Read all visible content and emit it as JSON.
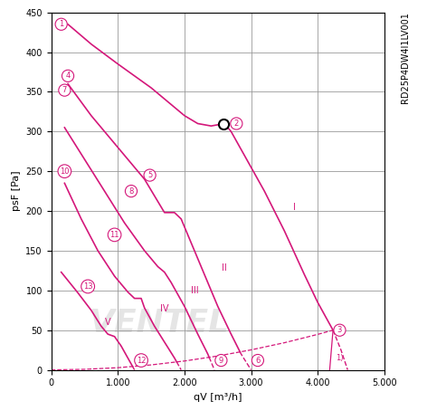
{
  "chart_data": {
    "type": "line",
    "model": "RD25P4DW4I1LV001",
    "watermark": "VENTEL",
    "xlabel": "qV [m³/h]",
    "ylabel": "psF [Pa]",
    "xlim": [
      0,
      5000
    ],
    "xticks": [
      0,
      {
        "value": 1000,
        "label": "1.000"
      },
      {
        "value": 2000,
        "label": "2.000"
      },
      {
        "value": 3000,
        "label": "3.000"
      },
      {
        "value": 4000,
        "label": "4.000"
      },
      {
        "value": 5000,
        "label": "5.000"
      }
    ],
    "ylim": [
      0,
      450
    ],
    "yticks": [
      0,
      50,
      100,
      150,
      200,
      250,
      300,
      350,
      400,
      450
    ],
    "grid": true,
    "color": "#d4177a",
    "series": [
      {
        "name": "I",
        "x": [
          250,
          600,
          1000,
          1500,
          2000,
          2200,
          2400,
          2600,
          2700,
          2900,
          3200,
          3500,
          3800,
          4000,
          4230,
          4350,
          4450
        ],
        "values": [
          435,
          410,
          385,
          355,
          320,
          310,
          307,
          310,
          300,
          270,
          225,
          175,
          120,
          85,
          50,
          25,
          0
        ],
        "label_x": 3650,
        "label_y": 205
      },
      {
        "name": "II",
        "x": [
          250,
          600,
          1000,
          1400,
          1600,
          1700,
          1850,
          1950,
          2100,
          2300,
          2500,
          2700,
          2850,
          3000
        ],
        "values": [
          360,
          320,
          280,
          240,
          212,
          198,
          198,
          190,
          160,
          120,
          80,
          45,
          20,
          0
        ],
        "label_x": 2600,
        "label_y": 128
      },
      {
        "name": "III",
        "x": [
          200,
          500,
          800,
          1100,
          1400,
          1600,
          1700,
          1800,
          2000,
          2200,
          2350,
          2450
        ],
        "values": [
          305,
          265,
          225,
          185,
          150,
          130,
          123,
          110,
          80,
          45,
          20,
          0
        ],
        "label_x": 2150,
        "label_y": 100
      },
      {
        "name": "IV",
        "x": [
          200,
          450,
          700,
          950,
          1150,
          1250,
          1350,
          1400,
          1550,
          1700,
          1850,
          1950
        ],
        "values": [
          235,
          190,
          150,
          118,
          98,
          90,
          90,
          78,
          55,
          35,
          15,
          0
        ],
        "label_x": 1700,
        "label_y": 77
      },
      {
        "name": "V",
        "x": [
          150,
          400,
          600,
          750,
          850,
          950,
          1050,
          1150,
          1250
        ],
        "values": [
          123,
          97,
          75,
          55,
          45,
          42,
          30,
          15,
          0
        ],
        "label_x": 850,
        "label_y": 60
      }
    ],
    "system_curve": {
      "x": [
        0,
        500,
        1000,
        1500,
        2000,
        2500,
        3000,
        3500,
        4000,
        4230
      ],
      "values": [
        0,
        0.7,
        2.8,
        6.3,
        11.2,
        17.5,
        25.2,
        34.2,
        44.7,
        50
      ]
    },
    "marked_point": {
      "x": 2590,
      "y": 310
    },
    "circled_labels": [
      {
        "text": "1",
        "x": 150,
        "y": 435
      },
      {
        "text": "2",
        "x": 2780,
        "y": 310
      },
      {
        "text": "3",
        "x": 4330,
        "y": 50
      },
      {
        "text": "4",
        "x": 250,
        "y": 370
      },
      {
        "text": "5",
        "x": 1480,
        "y": 245
      },
      {
        "text": "6",
        "x": 3100,
        "y": 12
      },
      {
        "text": "7",
        "x": 200,
        "y": 352
      },
      {
        "text": "8",
        "x": 1200,
        "y": 225
      },
      {
        "text": "9",
        "x": 2550,
        "y": 12
      },
      {
        "text": "10",
        "x": 200,
        "y": 250
      },
      {
        "text": "11",
        "x": 950,
        "y": 170
      },
      {
        "text": "12",
        "x": 1350,
        "y": 12
      },
      {
        "text": "13",
        "x": 550,
        "y": 105
      }
    ],
    "note": {
      "text": "1)",
      "x": 4330,
      "y": 15,
      "line_x": [
        4180,
        4230
      ],
      "line_y": [
        0,
        50
      ]
    }
  }
}
